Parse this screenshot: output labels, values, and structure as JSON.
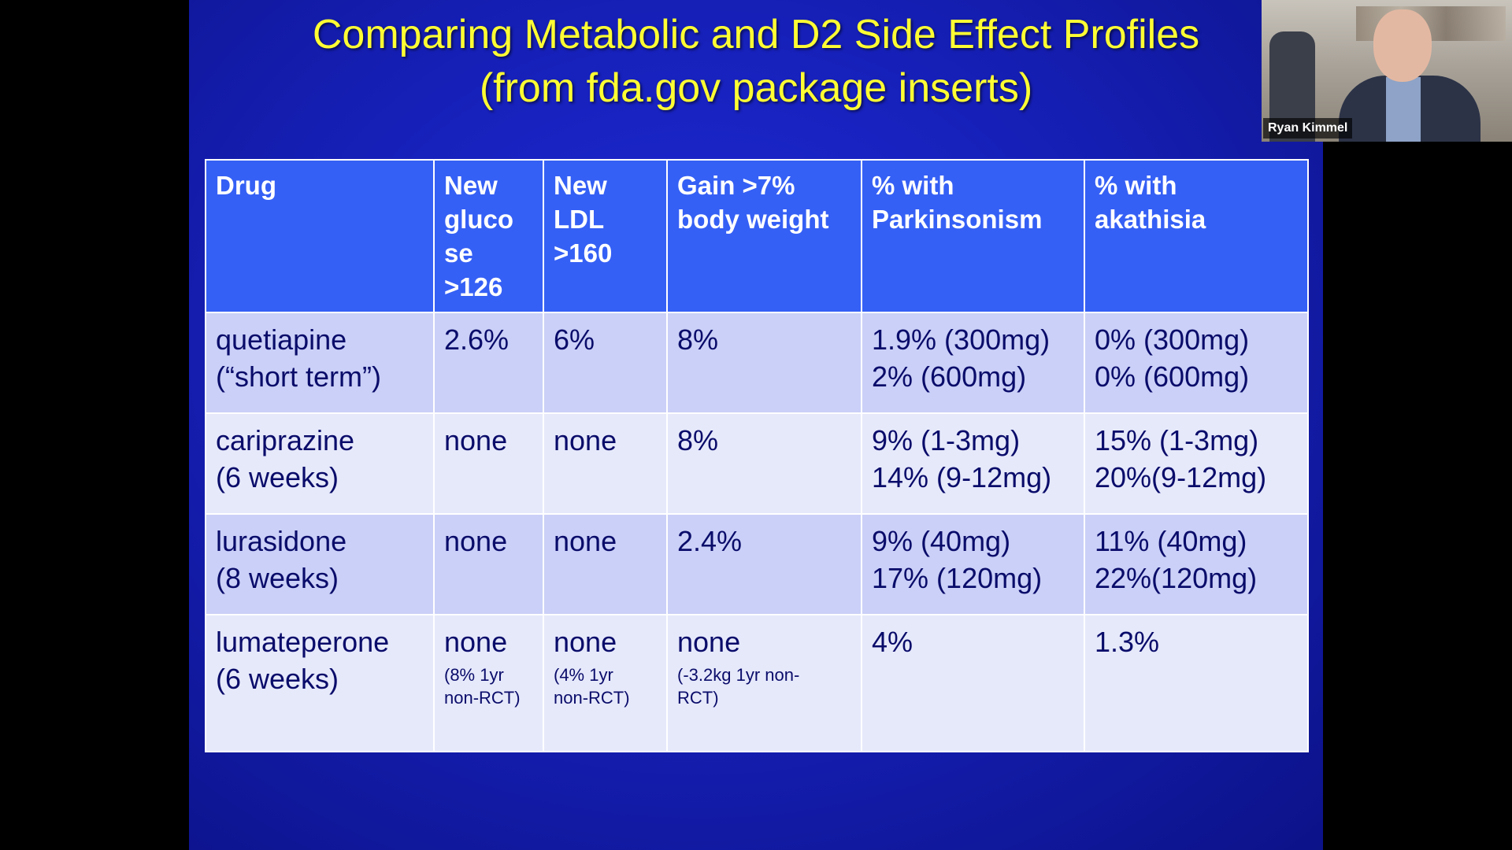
{
  "slide": {
    "title_line1": "Comparing Metabolic and D2 Side Effect Profiles",
    "title_line2": "(from fda.gov package inserts)"
  },
  "table": {
    "headers": [
      {
        "lines": [
          "Drug"
        ]
      },
      {
        "lines": [
          "New",
          "gluco",
          "se",
          ">126"
        ]
      },
      {
        "lines": [
          "New",
          "LDL",
          ">160"
        ]
      },
      {
        "lines": [
          "Gain >7%",
          "body weight"
        ]
      },
      {
        "lines": [
          "% with",
          "Parkinsonism"
        ]
      },
      {
        "lines": [
          "% with",
          "akathisia"
        ]
      }
    ],
    "rows": [
      {
        "drug": [
          "quetiapine",
          "(“short term”)"
        ],
        "glucose": "2.6%",
        "ldl": "6%",
        "weight": "8%",
        "parkinsonism": [
          "1.9% (300mg)",
          "2% (600mg)"
        ],
        "akathisia": [
          "0% (300mg)",
          "0% (600mg)"
        ]
      },
      {
        "drug": [
          "cariprazine",
          "(6 weeks)"
        ],
        "glucose": "none",
        "ldl": "none",
        "weight": "8%",
        "parkinsonism": [
          "9% (1-3mg)",
          "14% (9-12mg)"
        ],
        "akathisia": [
          "15% (1-3mg)",
          "20%(9-12mg)"
        ]
      },
      {
        "drug": [
          "lurasidone",
          "(8 weeks)"
        ],
        "glucose": "none",
        "ldl": "none",
        "weight": "2.4%",
        "parkinsonism": [
          "9% (40mg)",
          "17% (120mg)"
        ],
        "akathisia": [
          "11% (40mg)",
          "22%(120mg)"
        ]
      },
      {
        "drug": [
          "lumateperone",
          "(6 weeks)"
        ],
        "glucose": "none",
        "glucose_note": [
          "(8% 1yr",
          "non-RCT)"
        ],
        "ldl": "none",
        "ldl_note": [
          "(4% 1yr",
          "non-RCT)"
        ],
        "weight": "none",
        "weight_note": [
          "(-3.2kg 1yr non-",
          "RCT)"
        ],
        "parkinsonism": [
          "4%"
        ],
        "akathisia": [
          "1.3%"
        ]
      }
    ]
  },
  "video": {
    "participant_name": "Ryan Kimmel"
  },
  "colors": {
    "slide_background": "#1620b8",
    "title_text": "#ffff33",
    "header_background": "#3560f5",
    "row_odd": "#cad0f7",
    "row_even": "#e6e9fa"
  }
}
